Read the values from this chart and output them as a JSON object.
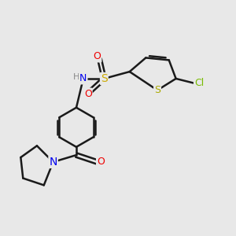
{
  "background_color": "#e8e8e8",
  "bond_color": "#1a1a1a",
  "bond_width": 1.8,
  "colors": {
    "N": "#0000ee",
    "O": "#ee0000",
    "S_sulfonyl": "#ccaa00",
    "S_thiophene": "#aaaa00",
    "Cl": "#77bb00",
    "H": "#888888"
  }
}
